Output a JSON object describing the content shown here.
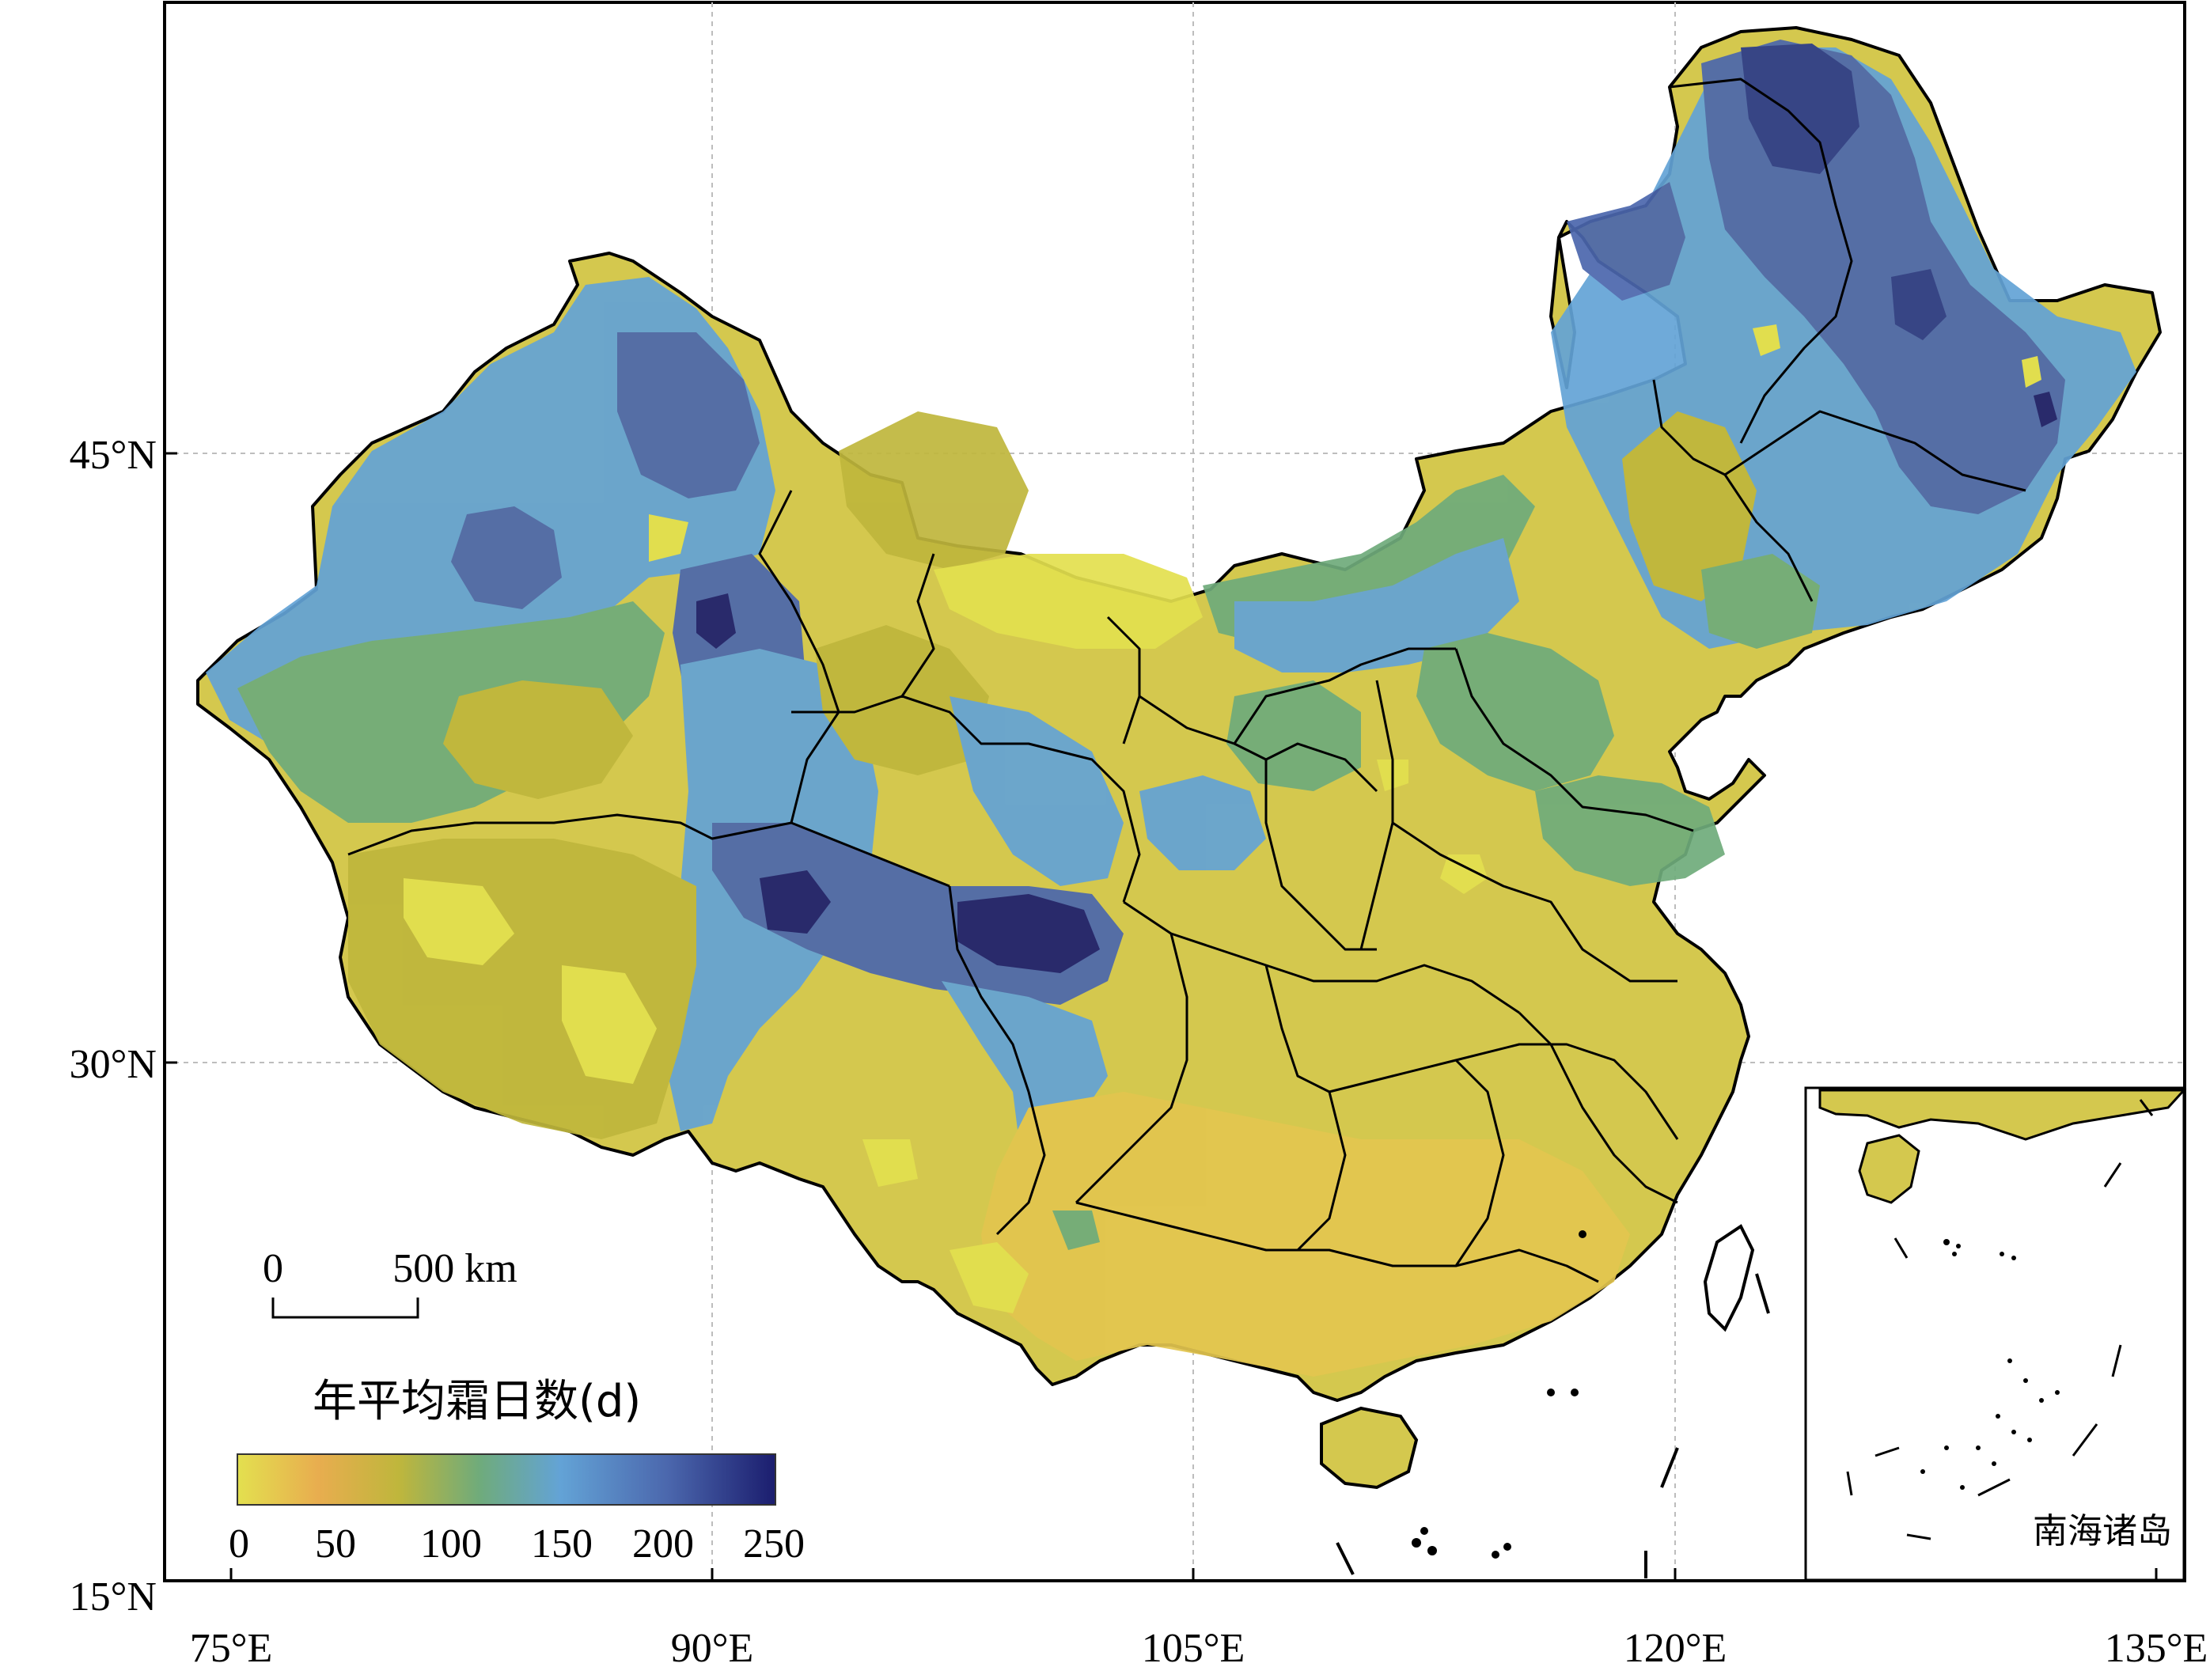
{
  "map": {
    "x_ticks": [
      "75°E",
      "90°E",
      "105°E",
      "120°E",
      "135°E"
    ],
    "y_ticks": [
      "45°N",
      "30°N",
      "15°N"
    ],
    "scale_bar": {
      "zero": "0",
      "distance": "500 km"
    },
    "legend": {
      "title": "年平均霜日数(d)",
      "ticks": [
        "0",
        "50",
        "100",
        "150",
        "200",
        "250"
      ],
      "range": [
        0,
        250
      ],
      "colors": [
        "#e3e04f",
        "#e8ad4f",
        "#bfb63c",
        "#6fab7b",
        "#63a3d6",
        "#4b67ad",
        "#1b1d6e"
      ]
    },
    "inset": {
      "label": "南海诸岛"
    }
  }
}
